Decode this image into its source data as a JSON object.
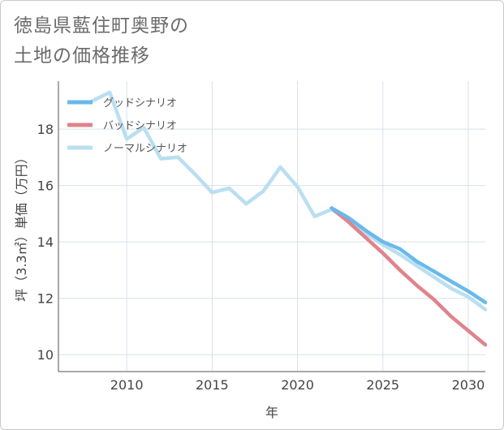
{
  "title_line1": "徳島県藍住町奥野の",
  "title_line2": "土地の価格推移",
  "chart_data": {
    "type": "line",
    "xlabel": "年",
    "ylabel": "坪（3.3㎡）単価（万円）",
    "xlim": [
      2006,
      2031
    ],
    "ylim": [
      9.4,
      19.7
    ],
    "xticks": [
      2010,
      2015,
      2020,
      2025,
      2030
    ],
    "yticks": [
      10,
      12,
      14,
      16,
      18
    ],
    "grid": true,
    "legend_position": "top-left",
    "series": [
      {
        "name": "グッドシナリオ",
        "color": "#6ab9ec",
        "x": [
          2022,
          2023,
          2024,
          2025,
          2026,
          2027,
          2028,
          2029,
          2030,
          2031
        ],
        "values": [
          15.2,
          14.85,
          14.4,
          14.0,
          13.75,
          13.3,
          12.95,
          12.6,
          12.25,
          11.85
        ]
      },
      {
        "name": "バッドシナリオ",
        "color": "#e0838b",
        "x": [
          2022,
          2023,
          2024,
          2025,
          2026,
          2027,
          2028,
          2029,
          2030,
          2031
        ],
        "values": [
          15.2,
          14.7,
          14.15,
          13.6,
          13.0,
          12.45,
          11.95,
          11.35,
          10.85,
          10.35
        ]
      },
      {
        "name": "ノーマルシナリオ",
        "color": "#b9dff0",
        "x": [
          2008,
          2009,
          2010,
          2011,
          2012,
          2013,
          2014,
          2015,
          2016,
          2017,
          2018,
          2019,
          2020,
          2021,
          2022,
          2023,
          2024,
          2025,
          2026,
          2027,
          2028,
          2029,
          2030,
          2031
        ],
        "values": [
          19.0,
          19.3,
          17.65,
          18.05,
          16.95,
          17.0,
          16.4,
          15.75,
          15.9,
          15.35,
          15.8,
          16.65,
          15.95,
          14.9,
          15.15,
          14.75,
          14.3,
          13.9,
          13.55,
          13.15,
          12.75,
          12.35,
          12.05,
          11.6
        ]
      }
    ]
  }
}
